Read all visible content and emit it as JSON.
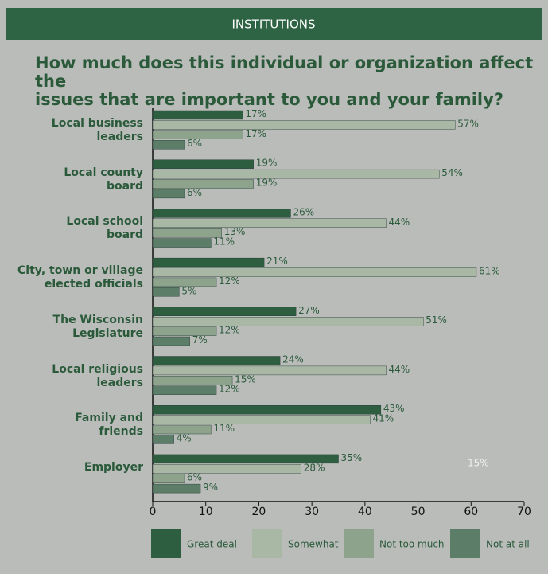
{
  "header": "INSTITUTIONS",
  "chart_data": {
    "type": "bar",
    "orientation": "horizontal",
    "title": "How much does this individual or organization affect the\nissues that are important to you and your family?",
    "categories": [
      "Local business\nleaders",
      "Local county\nboard",
      "Local school\nboard",
      "City, town or village\nelected officials",
      "The Wisconsin\nLegislature",
      "Local religious\nleaders",
      "Family and\nfriends",
      "Employer"
    ],
    "series": [
      {
        "name": "Great deal",
        "color": "#2d5e40",
        "values": [
          17,
          19,
          26,
          21,
          27,
          24,
          43,
          35
        ],
        "value_labels": [
          "17%",
          "19%",
          "26%",
          "21%",
          "27%",
          "24%",
          "43%",
          "35%"
        ]
      },
      {
        "name": "Somewhat",
        "color": "#a8b8a4",
        "values": [
          57,
          54,
          44,
          61,
          51,
          44,
          41,
          28
        ],
        "value_labels": [
          "57%",
          "54%",
          "44%",
          "61%",
          "51%",
          "44%",
          "41%",
          "28%"
        ]
      },
      {
        "name": "Not too much",
        "color": "#8da38c",
        "values": [
          17,
          19,
          13,
          12,
          12,
          15,
          11,
          6
        ],
        "value_labels": [
          "17%",
          "19%",
          "13%",
          "12%",
          "12%",
          "15%",
          "11%",
          "6%"
        ]
      },
      {
        "name": "Not at all",
        "color": "#5c7e68",
        "values": [
          6,
          6,
          11,
          5,
          7,
          12,
          4,
          9
        ],
        "value_labels": [
          "6%",
          "6%",
          "11%",
          "5%",
          "7%",
          "12%",
          "4%",
          "9%"
        ]
      }
    ],
    "annotation": "15%",
    "xlim": [
      0,
      70
    ],
    "xticks": [
      0,
      10,
      20,
      30,
      40,
      50,
      60,
      70
    ],
    "grid": false
  }
}
